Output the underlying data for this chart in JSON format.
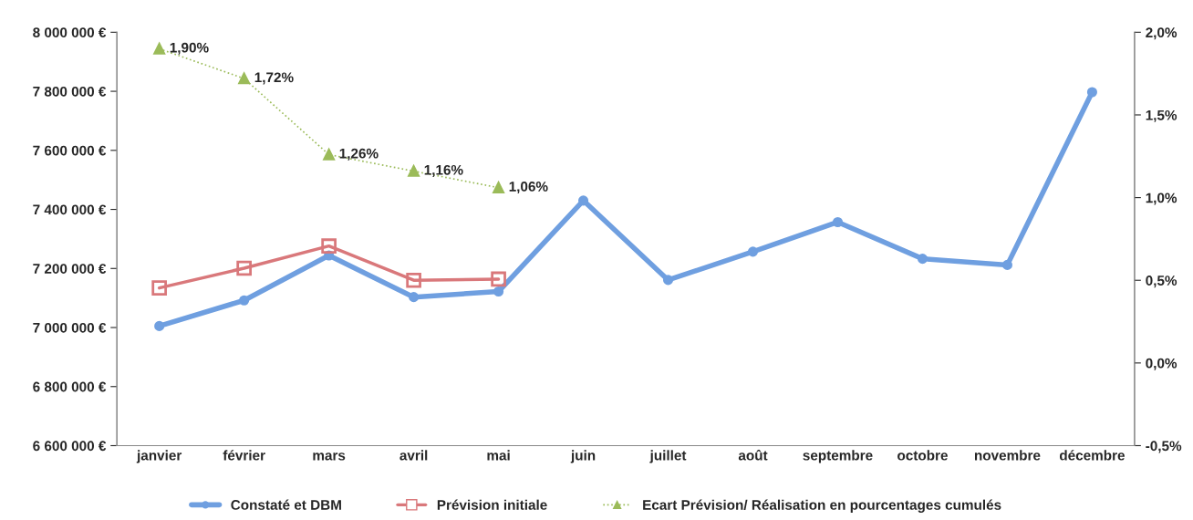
{
  "chart_data": {
    "type": "line",
    "categories": [
      "janvier",
      "février",
      "mars",
      "avril",
      "mai",
      "juin",
      "juillet",
      "août",
      "septembre",
      "octobre",
      "novembre",
      "décembre"
    ],
    "series": [
      {
        "name": "Constaté et DBM",
        "color": "#6f9fe0",
        "marker": "circle",
        "line_style": "solid",
        "values": [
          7005000,
          7092000,
          7244000,
          7103000,
          7122000,
          7430000,
          7161000,
          7257000,
          7357000,
          7233000,
          7212000,
          7797000
        ]
      },
      {
        "name": "Prévision initiale",
        "color": "#d9787b",
        "marker": "square",
        "line_style": "solid",
        "values": [
          7134000,
          7201000,
          7276000,
          7160000,
          7164000,
          null,
          null,
          null,
          null,
          null,
          null,
          null
        ]
      },
      {
        "name": "Ecart Prévision/ Réalisation en pourcentages cumulés",
        "color": "#9bbb59",
        "marker": "triangle",
        "line_style": "dotted",
        "axis": "y2",
        "values": [
          1.9,
          1.72,
          1.26,
          1.16,
          1.06,
          null,
          null,
          null,
          null,
          null,
          null,
          null
        ],
        "value_labels": [
          "1,90%",
          "1,72%",
          "1,26%",
          "1,16%",
          "1,06%",
          null,
          null,
          null,
          null,
          null,
          null,
          null
        ]
      }
    ],
    "ylim": [
      6600000,
      8000000
    ],
    "yticks": [
      {
        "value": 6600000,
        "label": "6 600 000 €"
      },
      {
        "value": 6800000,
        "label": "6 800 000 €"
      },
      {
        "value": 7000000,
        "label": "7 000 000 €"
      },
      {
        "value": 7200000,
        "label": "7 200 000 €"
      },
      {
        "value": 7400000,
        "label": "7 400 000 €"
      },
      {
        "value": 7600000,
        "label": "7 600 000 €"
      },
      {
        "value": 7800000,
        "label": "7 800 000 €"
      },
      {
        "value": 8000000,
        "label": "8 000 000 €"
      }
    ],
    "y2lim": [
      -0.5,
      2.0
    ],
    "y2ticks": [
      {
        "value": -0.5,
        "label": "-0,5%"
      },
      {
        "value": 0.0,
        "label": "0,0%"
      },
      {
        "value": 0.5,
        "label": "0,5%"
      },
      {
        "value": 1.0,
        "label": "1,0%"
      },
      {
        "value": 1.5,
        "label": "1,5%"
      },
      {
        "value": 2.0,
        "label": "2,0%"
      }
    ],
    "grid": false,
    "legend": "bottom"
  }
}
